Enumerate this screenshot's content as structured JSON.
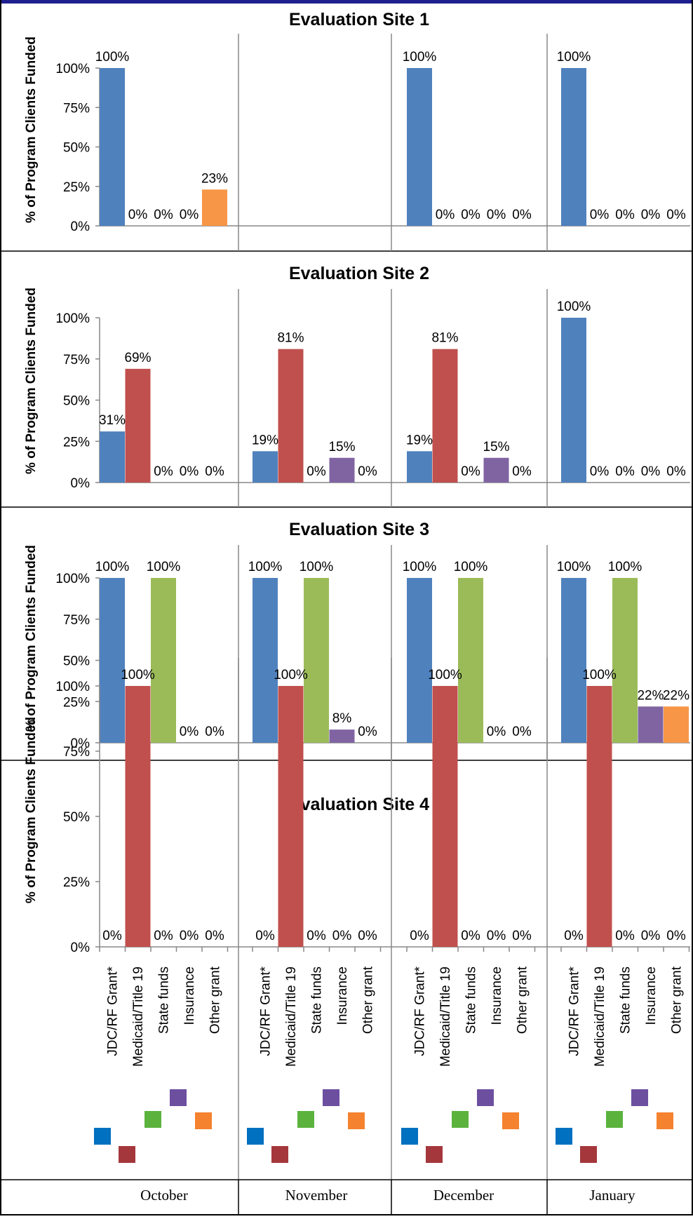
{
  "legend": [
    {
      "name": "JDC/RF Grant*",
      "color": "#4f81bd"
    },
    {
      "name": "Medicaid/Title 19",
      "color": "#c0504d"
    },
    {
      "name": "State funds",
      "color": "#9bbb59"
    },
    {
      "name": "Insurance",
      "color": "#8064a2"
    },
    {
      "name": "Other grant",
      "color": "#f79646"
    }
  ],
  "legend_swatch_colors": [
    "#0070c0",
    "#a4373c",
    "#5bb33e",
    "#6d4fa0",
    "#f5822e"
  ],
  "months": [
    "October",
    "November",
    "December",
    "January"
  ],
  "chart_data": [
    {
      "type": "bar",
      "title": "Evaluation Site 1",
      "ylabel": "% of Program Clients Funded",
      "ylim": [
        0,
        100
      ],
      "yticks": [
        "0%",
        "25%",
        "50%",
        "75%",
        "100%"
      ],
      "categories": [
        "JDC/RF Grant*",
        "Medicaid/Title 19",
        "State funds",
        "Insurance",
        "Other grant"
      ],
      "groups": [
        {
          "month": "October",
          "values": [
            100,
            0,
            0,
            0,
            23
          ],
          "labels": [
            "100%",
            "0%",
            "0%",
            "0%",
            "23%"
          ]
        },
        {
          "month": "November",
          "values": [
            null,
            null,
            null,
            null,
            null
          ],
          "labels": [
            "",
            "",
            "",
            "",
            ""
          ]
        },
        {
          "month": "December",
          "values": [
            100,
            0,
            0,
            0,
            0
          ],
          "labels": [
            "100%",
            "0%",
            "0%",
            "0%",
            "0%"
          ]
        },
        {
          "month": "January",
          "values": [
            100,
            0,
            0,
            0,
            0
          ],
          "labels": [
            "100%",
            "0%",
            "0%",
            "0%",
            "0%"
          ]
        }
      ]
    },
    {
      "type": "bar",
      "title": "Evaluation Site 2",
      "ylabel": "% of Program Clients Funded",
      "ylim": [
        0,
        100
      ],
      "yticks": [
        "0%",
        "25%",
        "50%",
        "75%",
        "100%"
      ],
      "categories": [
        "JDC/RF Grant*",
        "Medicaid/Title 19",
        "State funds",
        "Insurance",
        "Other grant"
      ],
      "groups": [
        {
          "month": "October",
          "values": [
            31,
            69,
            0,
            0,
            0
          ],
          "labels": [
            "31%",
            "69%",
            "0%",
            "0%",
            "0%"
          ]
        },
        {
          "month": "November",
          "values": [
            19,
            81,
            0,
            15,
            0
          ],
          "labels": [
            "19%",
            "81%",
            "0%",
            "15%",
            "0%"
          ]
        },
        {
          "month": "December",
          "values": [
            19,
            81,
            0,
            15,
            0
          ],
          "labels": [
            "19%",
            "81%",
            "0%",
            "15%",
            "0%"
          ]
        },
        {
          "month": "January",
          "values": [
            100,
            0,
            0,
            0,
            0
          ],
          "labels": [
            "100%",
            "0%",
            "0%",
            "0%",
            "0%"
          ]
        }
      ]
    },
    {
      "type": "bar",
      "title": "Evaluation Site 3",
      "ylabel": "% of Program Clients Funded",
      "ylim": [
        0,
        100
      ],
      "yticks": [
        "0%",
        "25%",
        "50%",
        "75%",
        "100%"
      ],
      "categories": [
        "JDC/RF Grant*",
        "Medicaid/Title 19",
        "State funds",
        "Insurance",
        "Other grant"
      ],
      "groups": [
        {
          "month": "October",
          "values": [
            100,
            0,
            100,
            0,
            0
          ],
          "labels": [
            "100%",
            "0%",
            "100%",
            "0%",
            "0%"
          ]
        },
        {
          "month": "November",
          "values": [
            100,
            0,
            100,
            8,
            0
          ],
          "labels": [
            "100%",
            "0%",
            "100%",
            "8%",
            "0%"
          ]
        },
        {
          "month": "December",
          "values": [
            100,
            0,
            100,
            0,
            0
          ],
          "labels": [
            "100%",
            "0%",
            "100%",
            "0%",
            "0%"
          ]
        },
        {
          "month": "January",
          "values": [
            100,
            0,
            100,
            22,
            22
          ],
          "labels": [
            "100%",
            "0%",
            "100%",
            "22%",
            "22%"
          ]
        }
      ]
    },
    {
      "type": "bar",
      "title": "Evaluation Site 4",
      "ylabel": "% of Program Clients Funded",
      "ylim": [
        0,
        100
      ],
      "yticks": [
        "0%",
        "25%",
        "50%",
        "75%",
        "100%"
      ],
      "categories": [
        "JDC/RF Grant*",
        "Medicaid/Title 19",
        "State funds",
        "Insurance",
        "Other grant"
      ],
      "groups": [
        {
          "month": "October",
          "values": [
            0,
            100,
            0,
            0,
            0
          ],
          "labels": [
            "0%",
            "100%",
            "0%",
            "0%",
            "0%"
          ]
        },
        {
          "month": "November",
          "values": [
            0,
            100,
            0,
            0,
            0
          ],
          "labels": [
            "0%",
            "100%",
            "0%",
            "0%",
            "0%"
          ]
        },
        {
          "month": "December",
          "values": [
            0,
            100,
            0,
            0,
            0
          ],
          "labels": [
            "0%",
            "100%",
            "0%",
            "0%",
            "0%"
          ]
        },
        {
          "month": "January",
          "values": [
            0,
            100,
            0,
            0,
            0
          ],
          "labels": [
            "0%",
            "100%",
            "0%",
            "0%",
            "0%"
          ]
        }
      ]
    }
  ]
}
